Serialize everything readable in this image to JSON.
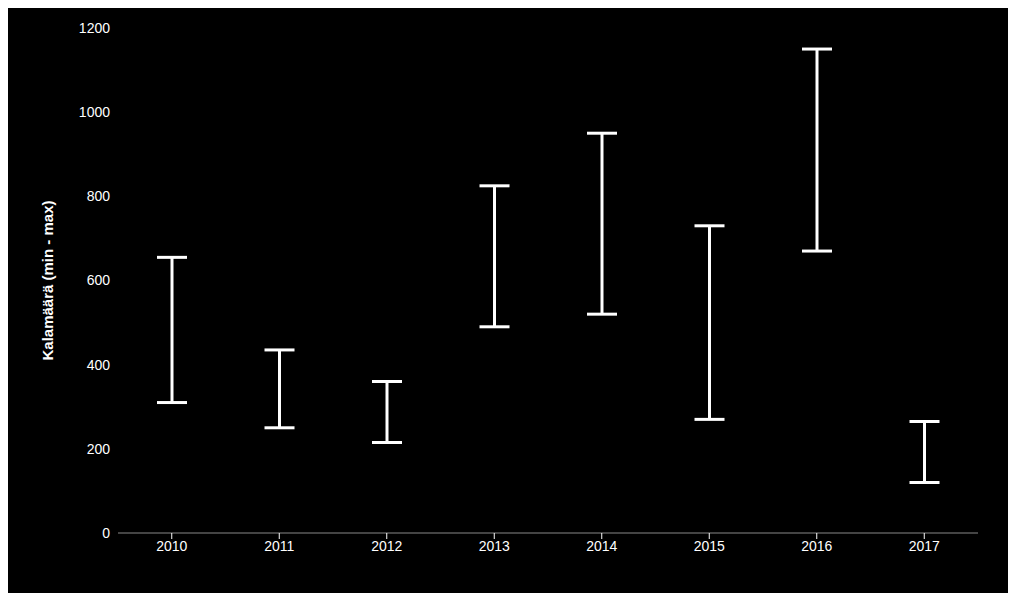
{
  "chart_data": {
    "type": "range",
    "categories": [
      "2010",
      "2011",
      "2012",
      "2013",
      "2014",
      "2015",
      "2016",
      "2017"
    ],
    "low": [
      310,
      250,
      215,
      490,
      520,
      270,
      670,
      120
    ],
    "high": [
      655,
      435,
      360,
      825,
      950,
      730,
      1150,
      265
    ],
    "ylabel": "Kalamäärä (min - max)",
    "ylim": [
      0,
      1200
    ],
    "yticks": [
      0,
      200,
      400,
      600,
      800,
      1000,
      1200
    ],
    "color": "#ffffff",
    "grid": false
  }
}
